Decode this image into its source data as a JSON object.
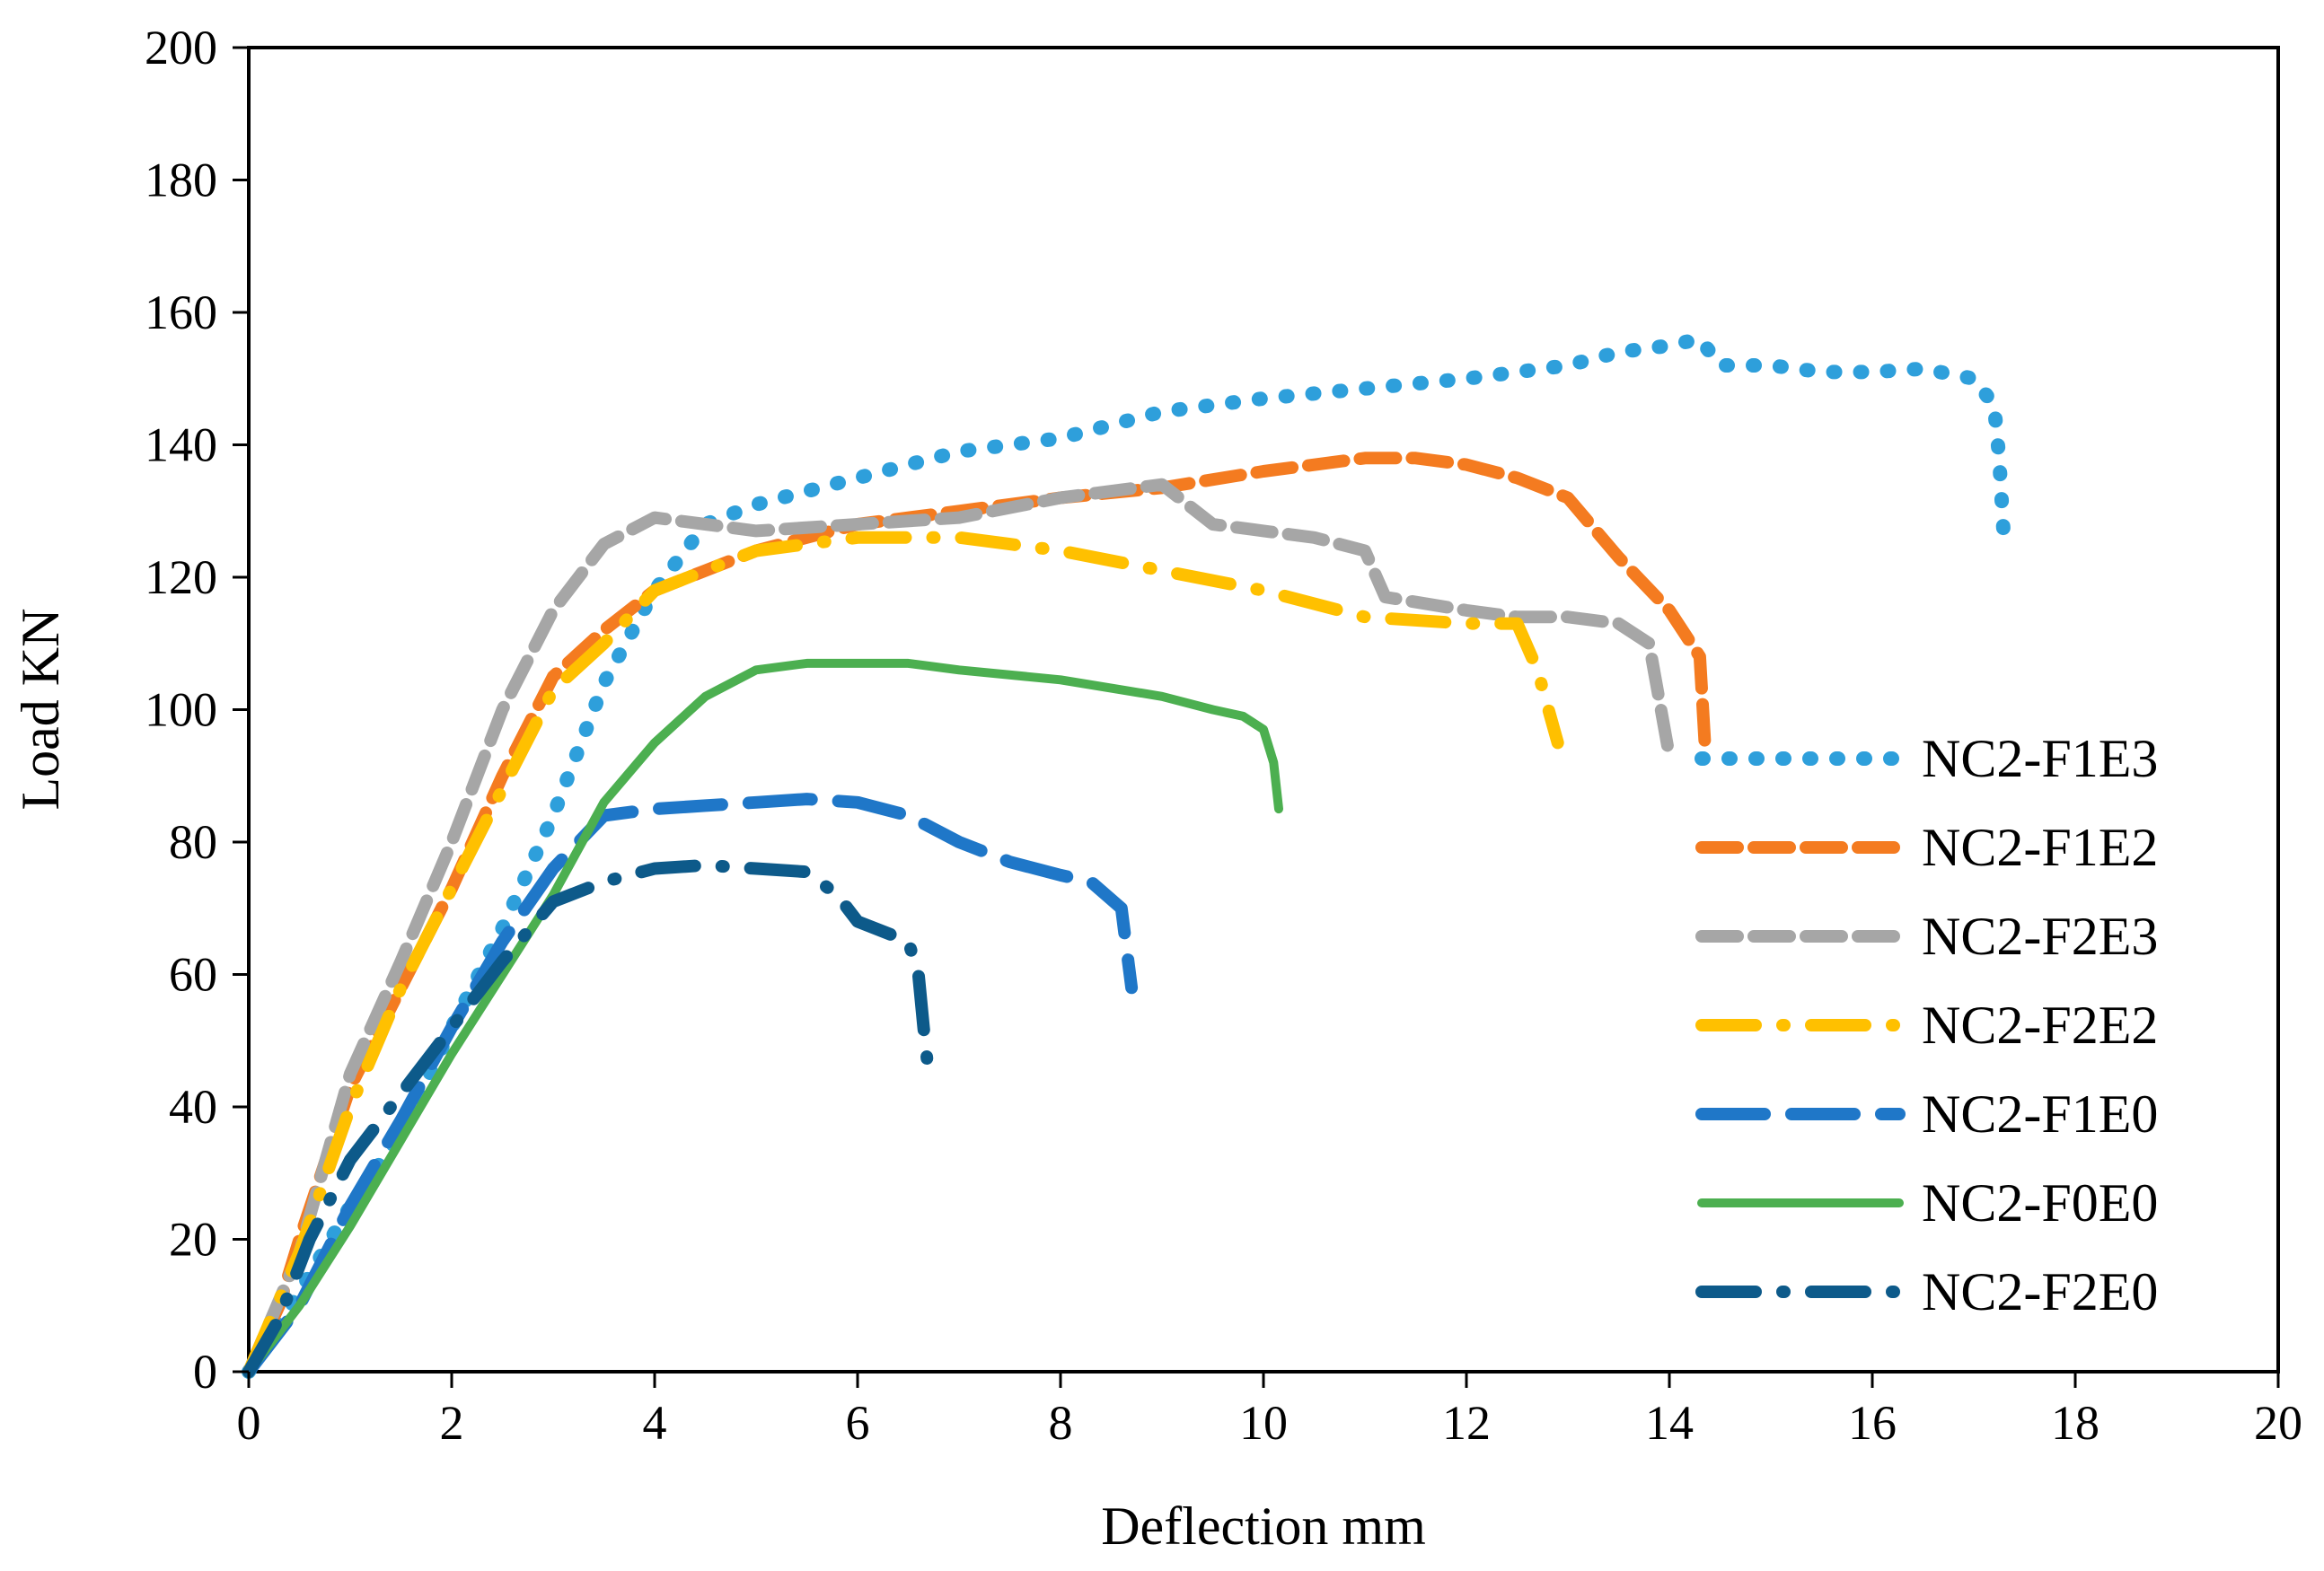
{
  "chart_data": {
    "type": "line",
    "title": "",
    "xlabel": "Deflection mm",
    "ylabel": "Load KN",
    "xlim": [
      0,
      20
    ],
    "ylim": [
      0,
      200
    ],
    "xticks": [
      "0",
      "2",
      "4",
      "6",
      "8",
      "10",
      "12",
      "14",
      "16",
      "18",
      "20"
    ],
    "yticks": [
      "0",
      "20",
      "40",
      "60",
      "80",
      "100",
      "120",
      "140",
      "160",
      "180",
      "200"
    ],
    "grid": false,
    "legend_position": "right",
    "series": [
      {
        "name": "NC2-F1E3",
        "color": "#2E9FDB",
        "style": "dotted",
        "points": [
          [
            0,
            0
          ],
          [
            0.5,
            12
          ],
          [
            1,
            25
          ],
          [
            1.5,
            36
          ],
          [
            2,
            52
          ],
          [
            2.5,
            67
          ],
          [
            3,
            84
          ],
          [
            3.5,
            104
          ],
          [
            4,
            118
          ],
          [
            4.5,
            128
          ],
          [
            5,
            131
          ],
          [
            6,
            135
          ],
          [
            7,
            139
          ],
          [
            8,
            141
          ],
          [
            9,
            145
          ],
          [
            10,
            147
          ],
          [
            11,
            148.5
          ],
          [
            12,
            150
          ],
          [
            13,
            152
          ],
          [
            13.5,
            154
          ],
          [
            14,
            155
          ],
          [
            14.3,
            156
          ],
          [
            14.5,
            152
          ],
          [
            15,
            152
          ],
          [
            15.5,
            151
          ],
          [
            16,
            151
          ],
          [
            16.5,
            151.5
          ],
          [
            17,
            150
          ],
          [
            17.2,
            146
          ],
          [
            17.25,
            138
          ],
          [
            17.3,
            125
          ]
        ]
      },
      {
        "name": "NC2-F1E2",
        "color": "#F47B20",
        "style": "dashed",
        "points": [
          [
            0,
            0
          ],
          [
            0.3,
            10
          ],
          [
            0.5,
            20
          ],
          [
            1,
            43
          ],
          [
            1.5,
            58
          ],
          [
            2,
            73
          ],
          [
            2.5,
            90
          ],
          [
            3,
            105
          ],
          [
            3.5,
            112
          ],
          [
            4,
            118
          ],
          [
            4.5,
            121
          ],
          [
            5,
            124
          ],
          [
            6,
            128
          ],
          [
            7,
            130
          ],
          [
            8,
            132
          ],
          [
            9,
            133.5
          ],
          [
            10,
            136
          ],
          [
            11,
            138
          ],
          [
            11.5,
            138
          ],
          [
            12,
            137
          ],
          [
            12.5,
            135
          ],
          [
            13,
            132
          ],
          [
            13.5,
            123
          ],
          [
            14,
            115
          ],
          [
            14.3,
            108
          ],
          [
            14.35,
            95
          ]
        ]
      },
      {
        "name": "NC2-F2E3",
        "color": "#A6A6A6",
        "style": "dashed",
        "points": [
          [
            0,
            0
          ],
          [
            0.5,
            18
          ],
          [
            1,
            45
          ],
          [
            1.5,
            62
          ],
          [
            2,
            80
          ],
          [
            2.5,
            100
          ],
          [
            3,
            115
          ],
          [
            3.5,
            125
          ],
          [
            4,
            129
          ],
          [
            4.5,
            128
          ],
          [
            5,
            127
          ],
          [
            6,
            128
          ],
          [
            7,
            129
          ],
          [
            8,
            132
          ],
          [
            9,
            134
          ],
          [
            9.5,
            128
          ],
          [
            10,
            127
          ],
          [
            10.5,
            126
          ],
          [
            11,
            124
          ],
          [
            11.2,
            117
          ],
          [
            12,
            115
          ],
          [
            12.5,
            114
          ],
          [
            13,
            114
          ],
          [
            13.5,
            113
          ],
          [
            13.8,
            110
          ],
          [
            14,
            93
          ]
        ]
      },
      {
        "name": "NC2-F2E2",
        "color": "#FFC000",
        "style": "dash-dot",
        "points": [
          [
            0,
            0
          ],
          [
            0.5,
            18
          ],
          [
            1,
            40
          ],
          [
            1.5,
            58
          ],
          [
            2,
            73
          ],
          [
            2.5,
            88
          ],
          [
            3,
            103
          ],
          [
            3.5,
            110
          ],
          [
            4,
            118
          ],
          [
            4.5,
            121
          ],
          [
            5,
            124
          ],
          [
            5.5,
            125
          ],
          [
            6,
            126
          ],
          [
            6.5,
            126
          ],
          [
            7,
            126
          ],
          [
            7.5,
            125
          ],
          [
            8,
            124
          ],
          [
            9,
            121
          ],
          [
            10,
            118
          ],
          [
            11,
            114
          ],
          [
            12,
            113
          ],
          [
            12.5,
            113
          ],
          [
            12.7,
            106
          ],
          [
            12.9,
            95
          ]
        ]
      },
      {
        "name": "NC2-F1E0",
        "color": "#1F77C8",
        "style": "long-dash",
        "points": [
          [
            0,
            0
          ],
          [
            0.5,
            10
          ],
          [
            1,
            25
          ],
          [
            1.5,
            38
          ],
          [
            2,
            52
          ],
          [
            2.5,
            65
          ],
          [
            3,
            76
          ],
          [
            3.5,
            84
          ],
          [
            4,
            85
          ],
          [
            4.5,
            85.5
          ],
          [
            5,
            86
          ],
          [
            5.5,
            86.5
          ],
          [
            6,
            86
          ],
          [
            6.5,
            84
          ],
          [
            7,
            80
          ],
          [
            7.5,
            77
          ],
          [
            8,
            75
          ],
          [
            8.3,
            74
          ],
          [
            8.6,
            70
          ],
          [
            8.7,
            58
          ]
        ]
      },
      {
        "name": "NC2-F0E0",
        "color": "#4CAF50",
        "style": "solid",
        "points": [
          [
            0,
            0
          ],
          [
            0.5,
            10
          ],
          [
            1,
            22
          ],
          [
            1.5,
            35
          ],
          [
            2,
            48
          ],
          [
            2.5,
            60
          ],
          [
            3,
            72
          ],
          [
            3.5,
            86
          ],
          [
            4,
            95
          ],
          [
            4.5,
            102
          ],
          [
            5,
            106
          ],
          [
            5.5,
            107
          ],
          [
            6,
            107
          ],
          [
            6.5,
            107
          ],
          [
            7,
            106
          ],
          [
            8,
            104.5
          ],
          [
            9,
            102
          ],
          [
            9.5,
            100
          ],
          [
            9.8,
            99
          ],
          [
            10,
            97
          ],
          [
            10.1,
            92
          ],
          [
            10.15,
            85
          ]
        ]
      },
      {
        "name": "NC2-F2E0",
        "color": "#0D5A8A",
        "style": "dash-dot",
        "points": [
          [
            0,
            0
          ],
          [
            0.3,
            8
          ],
          [
            0.6,
            20
          ],
          [
            1,
            32
          ],
          [
            1.5,
            42
          ],
          [
            2,
            52
          ],
          [
            2.5,
            62
          ],
          [
            3,
            71
          ],
          [
            3.5,
            74
          ],
          [
            4,
            76
          ],
          [
            4.5,
            76.5
          ],
          [
            5,
            76
          ],
          [
            5.5,
            75.5
          ],
          [
            5.8,
            72
          ],
          [
            6,
            68
          ],
          [
            6.5,
            65
          ],
          [
            6.6,
            60
          ],
          [
            6.65,
            52
          ],
          [
            6.7,
            45
          ]
        ]
      }
    ]
  }
}
